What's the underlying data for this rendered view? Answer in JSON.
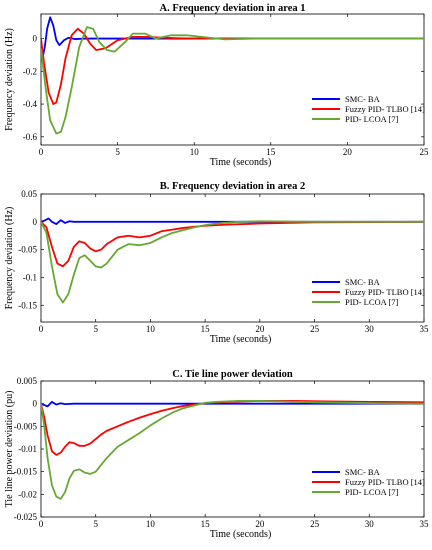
{
  "chart_data": [
    {
      "type": "line",
      "title": "A. Frequency deviation in area 1",
      "xlabel": "Time (seconds)",
      "ylabel": "Frequency deviation (Hz)",
      "xlim": [
        0,
        25
      ],
      "ylim": [
        -0.65,
        0.15
      ],
      "xticks": [
        0,
        5,
        10,
        15,
        20,
        25
      ],
      "yticks": [
        0,
        -0.2,
        -0.4,
        -0.6
      ],
      "ytick_labels": [
        "0",
        "-0.2",
        "-0.4",
        "-0.6"
      ],
      "grid": false,
      "legend_position": "right",
      "series": [
        {
          "name": "SMC- BA",
          "color": "#0000ff",
          "x": [
            0,
            0.1,
            0.25,
            0.4,
            0.6,
            0.8,
            1.0,
            1.2,
            1.5,
            1.8,
            2.2,
            3,
            5,
            25
          ],
          "y": [
            0,
            -0.12,
            -0.05,
            0.06,
            0.13,
            0.08,
            -0.01,
            -0.04,
            -0.01,
            0.005,
            -0.003,
            0,
            0,
            0
          ]
        },
        {
          "name": "Fuzzy PID- TLBO [14]",
          "color": "#ff0000",
          "x": [
            0,
            0.2,
            0.5,
            0.8,
            1.0,
            1.3,
            1.6,
            2.0,
            2.4,
            2.8,
            3.2,
            3.6,
            4.2,
            5.0,
            6.0,
            7.0,
            8.0,
            9.0,
            10.0,
            12.0,
            15.0,
            25.0
          ],
          "y": [
            0,
            -0.15,
            -0.33,
            -0.4,
            -0.39,
            -0.28,
            -0.12,
            0.02,
            0.06,
            0.03,
            -0.03,
            -0.07,
            -0.06,
            -0.01,
            0.01,
            0.01,
            0.005,
            0.002,
            0,
            0,
            0,
            0
          ]
        },
        {
          "name": "PID- LCOA [7]",
          "color": "#66a832",
          "x": [
            0,
            0.3,
            0.6,
            1.0,
            1.3,
            1.6,
            2.0,
            2.5,
            3.0,
            3.4,
            3.8,
            4.3,
            4.8,
            5.5,
            6.0,
            6.8,
            7.5,
            8.5,
            9.5,
            11.0,
            12.0,
            14.0,
            25.0
          ],
          "y": [
            -0.06,
            -0.3,
            -0.5,
            -0.58,
            -0.57,
            -0.48,
            -0.3,
            -0.05,
            0.07,
            0.06,
            -0.02,
            -0.07,
            -0.08,
            -0.02,
            0.03,
            0.03,
            0.0,
            0.02,
            0.02,
            0.005,
            -0.005,
            0,
            0
          ]
        }
      ]
    },
    {
      "type": "line",
      "title": "B. Frequency deviation in area 2",
      "xlabel": "Time (seconds)",
      "ylabel": "Frequency deviation (Hz)",
      "xlim": [
        0,
        35
      ],
      "ylim": [
        -0.18,
        0.05
      ],
      "xticks": [
        0,
        5,
        10,
        15,
        20,
        25,
        30,
        35
      ],
      "yticks": [
        0.05,
        0,
        -0.05,
        -0.1,
        -0.15
      ],
      "ytick_labels": [
        "0.05",
        "0",
        "-0.05",
        "-0.1",
        "-0.15"
      ],
      "grid": false,
      "legend_position": "right",
      "series": [
        {
          "name": "SMC- BA",
          "color": "#0000ff",
          "x": [
            0,
            0.3,
            0.7,
            1.0,
            1.4,
            1.8,
            2.2,
            2.6,
            3.0,
            4.0,
            35
          ],
          "y": [
            0,
            0.002,
            0.006,
            0.0,
            -0.004,
            0.003,
            -0.002,
            0.001,
            0,
            0,
            0
          ]
        },
        {
          "name": "Fuzzy PID- TLBO [14]",
          "color": "#ff0000",
          "x": [
            0,
            0.5,
            1.0,
            1.5,
            2.0,
            2.5,
            3.0,
            3.5,
            4.0,
            4.5,
            5.0,
            5.5,
            6.0,
            7.0,
            8.0,
            9.0,
            10.0,
            11.0,
            12.0,
            13.0,
            14.0,
            15.0,
            17.0,
            20.0,
            25.0,
            35.0
          ],
          "y": [
            0,
            -0.01,
            -0.045,
            -0.075,
            -0.08,
            -0.07,
            -0.045,
            -0.035,
            -0.038,
            -0.048,
            -0.053,
            -0.05,
            -0.04,
            -0.028,
            -0.025,
            -0.028,
            -0.025,
            -0.017,
            -0.014,
            -0.011,
            -0.009,
            -0.007,
            -0.005,
            -0.003,
            -0.001,
            0
          ]
        },
        {
          "name": "PID- LCOA [7]",
          "color": "#66a832",
          "x": [
            0,
            0.5,
            1.0,
            1.5,
            2.0,
            2.5,
            3.0,
            3.5,
            4.0,
            4.5,
            5.0,
            5.5,
            6.0,
            7.0,
            8.0,
            9.0,
            10.0,
            11.0,
            12.0,
            13.0,
            14.0,
            15.0,
            16.0,
            18.0,
            20.0,
            25.0,
            35.0
          ],
          "y": [
            0,
            -0.02,
            -0.08,
            -0.13,
            -0.145,
            -0.13,
            -0.095,
            -0.065,
            -0.06,
            -0.07,
            -0.08,
            -0.082,
            -0.075,
            -0.05,
            -0.04,
            -0.042,
            -0.038,
            -0.028,
            -0.02,
            -0.015,
            -0.01,
            -0.006,
            -0.003,
            0,
            0.001,
            0,
            0
          ]
        }
      ]
    },
    {
      "type": "line",
      "title": "C. Tie line power deviation",
      "xlabel": "Time (seconds)",
      "ylabel": "Tie line power deviation (pu)",
      "xlim": [
        0,
        35
      ],
      "ylim": [
        -0.025,
        0.005
      ],
      "xticks": [
        0,
        5,
        10,
        15,
        20,
        25,
        30,
        35
      ],
      "yticks": [
        0.005,
        0,
        -0.005,
        -0.01,
        -0.015,
        -0.02,
        -0.025
      ],
      "ytick_labels": [
        "0.005",
        "0",
        "-0.005",
        "-0.01",
        "-0.015",
        "-0.02",
        "-0.025"
      ],
      "grid": false,
      "legend_position": "right",
      "series": [
        {
          "name": "SMC- BA",
          "color": "#0000ff",
          "x": [
            0,
            0.3,
            0.6,
            1.0,
            1.4,
            1.8,
            2.2,
            3.0,
            35
          ],
          "y": [
            0,
            -0.0003,
            -0.0006,
            0.0004,
            -0.0002,
            0.0001,
            -0.0001,
            0,
            0
          ]
        },
        {
          "name": "Fuzzy PID- TLBO [14]",
          "color": "#ff0000",
          "x": [
            0,
            0.3,
            0.6,
            1.0,
            1.4,
            1.8,
            2.2,
            2.6,
            3.0,
            3.5,
            4.0,
            4.5,
            5.0,
            5.5,
            6.0,
            7.0,
            8.0,
            9.0,
            10.0,
            11.0,
            12.0,
            13.0,
            14.0,
            15.0,
            17.0,
            20.0,
            23.0,
            26.0,
            30.0,
            35.0
          ],
          "y": [
            0,
            -0.003,
            -0.007,
            -0.0105,
            -0.0113,
            -0.0108,
            -0.0095,
            -0.0085,
            -0.0087,
            -0.0093,
            -0.0093,
            -0.0088,
            -0.0078,
            -0.0068,
            -0.006,
            -0.005,
            -0.004,
            -0.0031,
            -0.0023,
            -0.0016,
            -0.001,
            -0.0005,
            -0.0002,
            0.0001,
            0.0004,
            0.0006,
            0.0006,
            0.0005,
            0.0004,
            0.0003
          ]
        },
        {
          "name": "PID- LCOA [7]",
          "color": "#66a832",
          "x": [
            0,
            0.3,
            0.6,
            1.0,
            1.4,
            1.8,
            2.2,
            2.6,
            3.0,
            3.5,
            4.0,
            4.5,
            5.0,
            5.5,
            6.0,
            7.0,
            8.0,
            9.0,
            10.0,
            11.0,
            12.0,
            13.0,
            14.0,
            15.0,
            16.0,
            18.0,
            20.0,
            22.0,
            25.0,
            30.0,
            35.0
          ],
          "y": [
            0,
            -0.005,
            -0.012,
            -0.018,
            -0.0205,
            -0.021,
            -0.0195,
            -0.0165,
            -0.0148,
            -0.0145,
            -0.0152,
            -0.0155,
            -0.015,
            -0.0135,
            -0.012,
            -0.0095,
            -0.008,
            -0.0065,
            -0.0048,
            -0.0033,
            -0.002,
            -0.001,
            -0.0004,
            0.0002,
            0.0004,
            0.0006,
            0.0006,
            0.0005,
            0.0003,
            0.0001,
            0
          ]
        }
      ]
    }
  ]
}
